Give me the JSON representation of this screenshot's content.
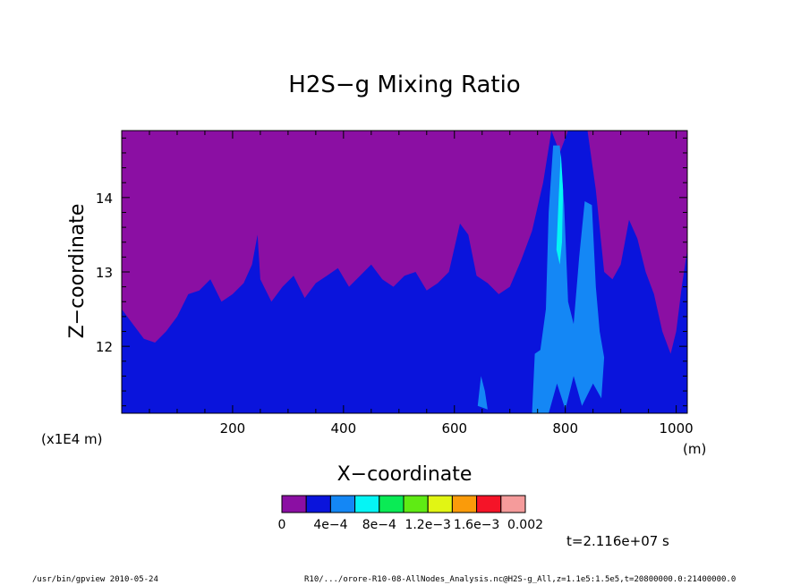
{
  "chart_data": {
    "type": "heatmap",
    "title": "H2S−g Mixing Ratio",
    "xlabel": "X−coordinate",
    "ylabel": "Z−coordinate",
    "x_unit": "(m)",
    "y_scale_label": "(x1E4 m)",
    "xlim": [
      0,
      1020
    ],
    "ylim": [
      11.1,
      14.9
    ],
    "x_ticks": [
      "200",
      "400",
      "600",
      "800",
      "1000"
    ],
    "x_tick_values": [
      200,
      400,
      600,
      800,
      1000
    ],
    "y_ticks": [
      "12",
      "13",
      "14"
    ],
    "y_tick_values": [
      12,
      13,
      14
    ],
    "colorbar": {
      "colors": [
        "#8B0FA3",
        "#0A14DC",
        "#1487F5",
        "#05F5F5",
        "#0AEB55",
        "#5FEB14",
        "#E1F514",
        "#FA9B0A",
        "#F51428",
        "#F59B9B"
      ],
      "labels": [
        "0",
        "4e−4",
        "8e−4",
        "1.2e−3",
        "1.6e−3",
        "0.002"
      ]
    },
    "time_label": "t=2.116e+07 s",
    "boundary_purple_blue": [
      [
        0,
        12.5
      ],
      [
        20,
        12.3
      ],
      [
        40,
        12.1
      ],
      [
        60,
        12.05
      ],
      [
        80,
        12.2
      ],
      [
        100,
        12.4
      ],
      [
        120,
        12.7
      ],
      [
        140,
        12.75
      ],
      [
        160,
        12.9
      ],
      [
        180,
        12.6
      ],
      [
        200,
        12.7
      ],
      [
        220,
        12.85
      ],
      [
        235,
        13.1
      ],
      [
        245,
        13.5
      ],
      [
        250,
        12.9
      ],
      [
        270,
        12.6
      ],
      [
        290,
        12.8
      ],
      [
        310,
        12.95
      ],
      [
        330,
        12.65
      ],
      [
        350,
        12.85
      ],
      [
        370,
        12.95
      ],
      [
        390,
        13.05
      ],
      [
        410,
        12.8
      ],
      [
        430,
        12.95
      ],
      [
        450,
        13.1
      ],
      [
        470,
        12.9
      ],
      [
        490,
        12.8
      ],
      [
        510,
        12.95
      ],
      [
        530,
        13.0
      ],
      [
        550,
        12.75
      ],
      [
        570,
        12.85
      ],
      [
        590,
        13.0
      ],
      [
        610,
        13.65
      ],
      [
        625,
        13.5
      ],
      [
        640,
        12.95
      ],
      [
        660,
        12.85
      ],
      [
        680,
        12.7
      ],
      [
        700,
        12.8
      ],
      [
        720,
        13.15
      ],
      [
        740,
        13.55
      ],
      [
        760,
        14.2
      ],
      [
        775,
        14.9
      ],
      [
        790,
        14.6
      ],
      [
        805,
        14.9
      ],
      [
        825,
        14.9
      ],
      [
        840,
        14.9
      ],
      [
        855,
        14.1
      ],
      [
        870,
        13.0
      ],
      [
        885,
        12.9
      ],
      [
        900,
        13.1
      ],
      [
        915,
        13.7
      ],
      [
        930,
        13.45
      ],
      [
        945,
        13.0
      ],
      [
        960,
        12.7
      ],
      [
        975,
        12.2
      ],
      [
        990,
        11.9
      ],
      [
        1000,
        12.2
      ],
      [
        1010,
        12.8
      ],
      [
        1020,
        13.3
      ]
    ],
    "light_blue_regions": [
      [
        [
          740,
          11.1
        ],
        [
          745,
          11.9
        ],
        [
          755,
          11.95
        ],
        [
          765,
          12.5
        ],
        [
          770,
          13.8
        ],
        [
          778,
          14.7
        ],
        [
          790,
          14.7
        ],
        [
          798,
          13.9
        ],
        [
          805,
          12.6
        ],
        [
          815,
          12.3
        ],
        [
          825,
          13.2
        ],
        [
          835,
          13.95
        ],
        [
          848,
          13.9
        ],
        [
          855,
          12.8
        ],
        [
          862,
          12.2
        ],
        [
          870,
          11.85
        ],
        [
          865,
          11.3
        ],
        [
          850,
          11.5
        ],
        [
          830,
          11.2
        ],
        [
          815,
          11.6
        ],
        [
          800,
          11.15
        ],
        [
          785,
          11.5
        ],
        [
          770,
          11.1
        ]
      ],
      [
        [
          642,
          11.2
        ],
        [
          648,
          11.6
        ],
        [
          655,
          11.4
        ],
        [
          660,
          11.15
        ]
      ]
    ],
    "cyan_regions": [
      [
        [
          784,
          13.3
        ],
        [
          788,
          14.0
        ],
        [
          792,
          14.6
        ],
        [
          796,
          14.1
        ],
        [
          794,
          13.4
        ],
        [
          790,
          13.1
        ]
      ]
    ]
  },
  "footer": {
    "left": "/usr/bin/gpview  2010-05-24",
    "right": "R10/.../orore-R10-08-AllNodes_Analysis.nc@H2S-g_All,z=1.1e5:1.5e5,t=20800000.0:21400000.0"
  }
}
